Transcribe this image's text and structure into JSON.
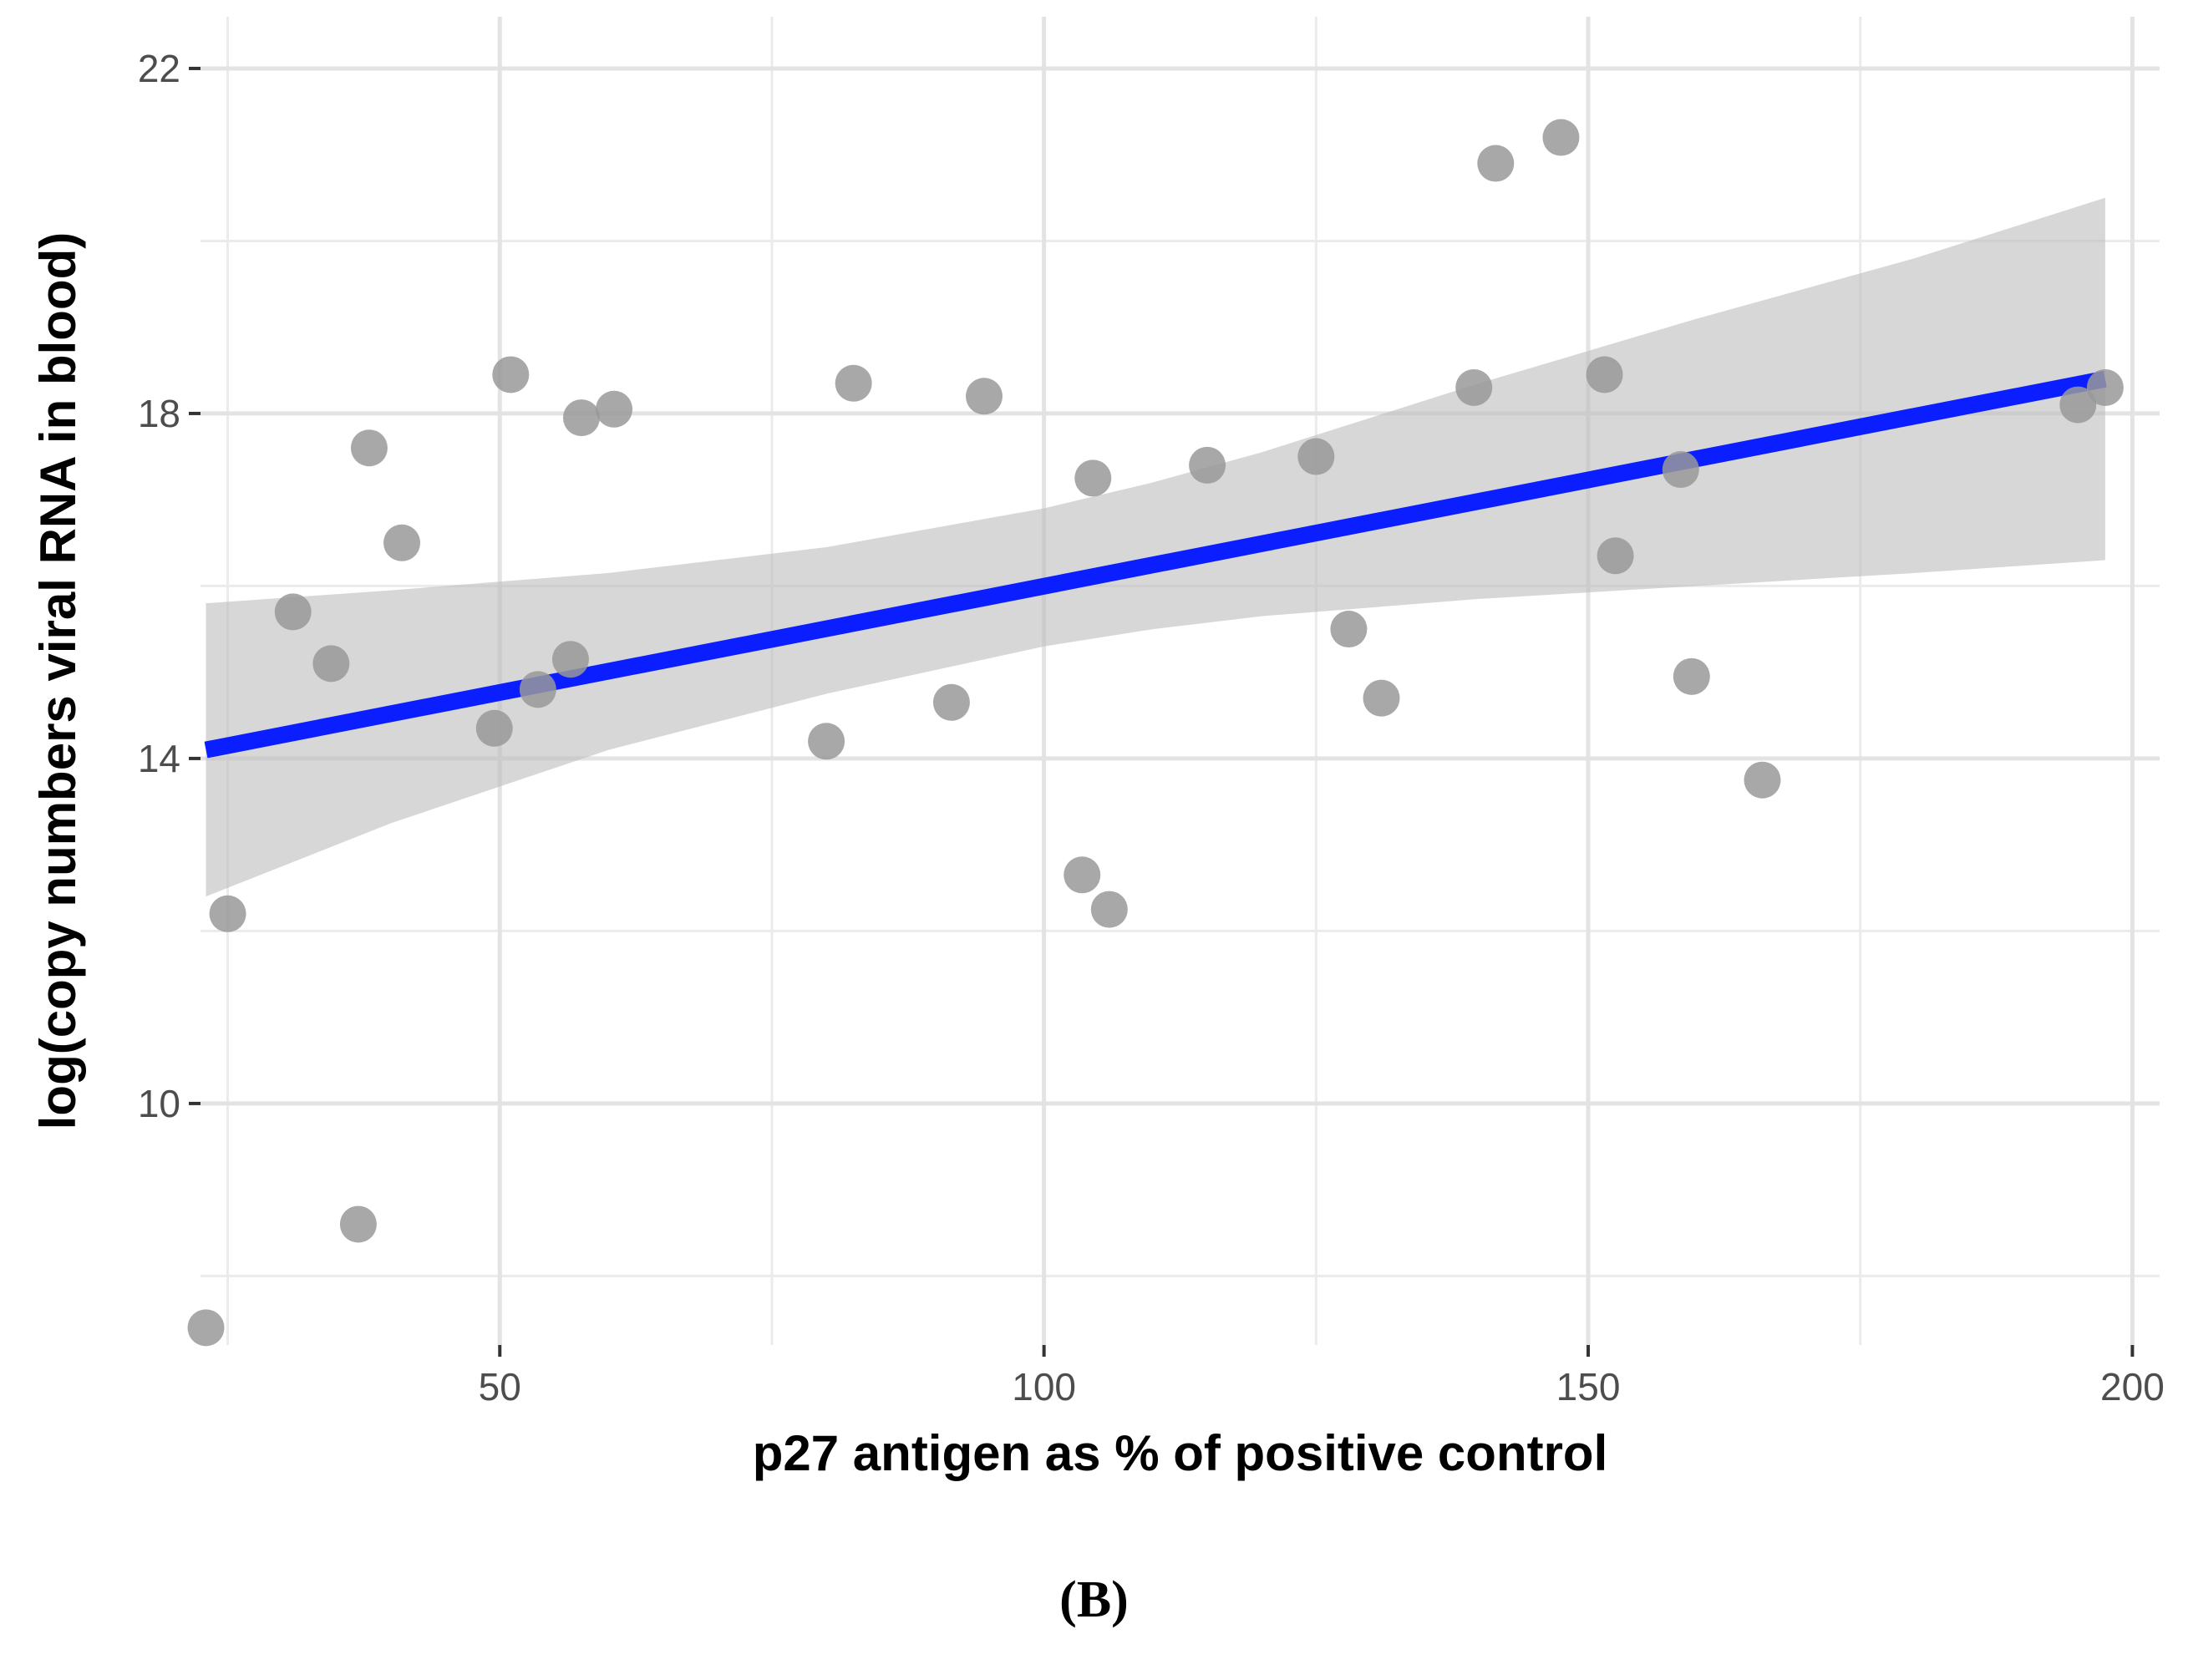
{
  "chart_data": {
    "type": "scatter",
    "xlabel": "p27 antigen as % of positive control",
    "ylabel": "log(copy numbers viral RNA in blood)",
    "xlim": [
      22.5,
      202.5
    ],
    "ylim": [
      7.2,
      22.6
    ],
    "x_ticks": [
      50,
      100,
      150,
      200
    ],
    "y_ticks": [
      10,
      14,
      18,
      22
    ],
    "x_minor": [
      25,
      75,
      125,
      175
    ],
    "y_minor": [
      8,
      12,
      16,
      20
    ],
    "grid": true,
    "panel_background": "#ffffff",
    "series": [
      {
        "points": [
          [
            23,
            7.4
          ],
          [
            25,
            12.2
          ],
          [
            31,
            15.7
          ],
          [
            34.5,
            15.1
          ],
          [
            37,
            8.6
          ],
          [
            38,
            17.6
          ],
          [
            41,
            16.5
          ],
          [
            49.5,
            14.35
          ],
          [
            51,
            18.45
          ],
          [
            53.5,
            14.8
          ],
          [
            56.5,
            15.15
          ],
          [
            57.5,
            17.95
          ],
          [
            60.5,
            18.05
          ],
          [
            80,
            14.2
          ],
          [
            82.5,
            18.35
          ],
          [
            91.5,
            14.65
          ],
          [
            94.5,
            18.2
          ],
          [
            103.5,
            12.65
          ],
          [
            104.5,
            17.25
          ],
          [
            106,
            12.25
          ],
          [
            115,
            17.4
          ],
          [
            125,
            17.5
          ],
          [
            128,
            15.5
          ],
          [
            131,
            14.7
          ],
          [
            139.5,
            18.3
          ],
          [
            141.5,
            20.9
          ],
          [
            147.5,
            21.2
          ],
          [
            151.5,
            18.45
          ],
          [
            152.5,
            16.35
          ],
          [
            158.5,
            17.35
          ],
          [
            159.5,
            14.95
          ],
          [
            166,
            13.75
          ],
          [
            195,
            18.1
          ],
          [
            197.5,
            18.3
          ]
        ],
        "color": "#999999"
      }
    ],
    "fit_line": {
      "x": [
        23,
        197.5
      ],
      "y": [
        14.1,
        18.4
      ],
      "color": "#0a1eff"
    },
    "confidence_band": {
      "x": [
        23,
        40,
        60,
        80,
        100,
        110,
        120,
        140,
        160,
        180,
        197.5
      ],
      "upper": [
        15.8,
        15.95,
        16.15,
        16.45,
        16.9,
        17.2,
        17.55,
        18.35,
        19.1,
        19.8,
        20.5
      ],
      "lower": [
        12.4,
        13.25,
        14.1,
        14.75,
        15.3,
        15.5,
        15.65,
        15.85,
        16.0,
        16.15,
        16.3
      ],
      "color": "#bdbdbd"
    }
  },
  "panel_label": "(B)"
}
